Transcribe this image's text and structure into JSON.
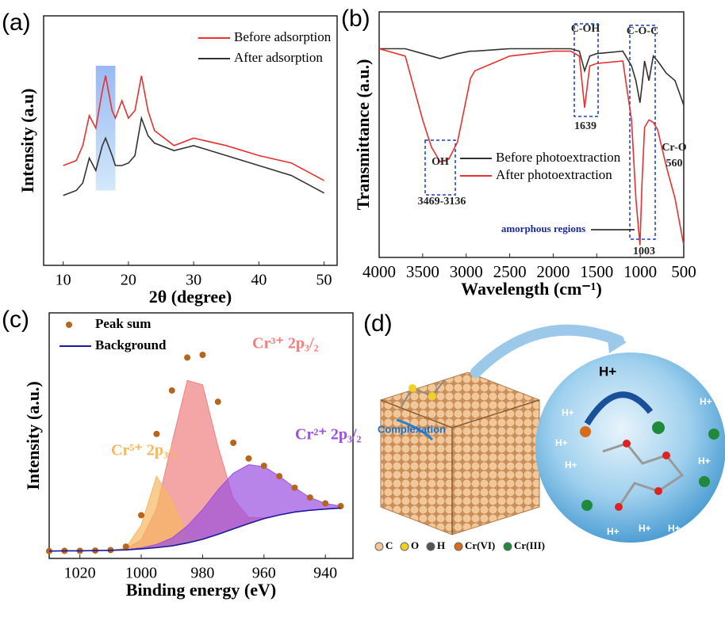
{
  "chart_data": [
    {
      "type": "line",
      "panel_label": "(a)",
      "x_label": "2θ (degree)",
      "y_label": "Intensity (a.u)",
      "xlim": [
        7,
        52
      ],
      "ylim": [
        0,
        100
      ],
      "xticks": [
        10,
        20,
        30,
        40,
        50
      ],
      "legend": "upper right",
      "x": [
        10,
        12,
        13,
        14,
        15,
        16,
        16.5,
        17.5,
        18,
        19,
        20,
        21,
        22,
        23,
        24,
        27,
        30,
        35,
        40,
        45,
        50
      ],
      "series": [
        {
          "name": "Before adsorption",
          "color": "#e83030",
          "values": [
            40,
            42,
            48,
            60,
            55,
            70,
            76,
            62,
            59,
            66,
            59,
            62,
            76,
            62,
            54,
            48,
            51,
            48,
            44,
            41,
            34
          ]
        },
        {
          "name": "After adsorption",
          "color": "#333333",
          "values": [
            28,
            30,
            33,
            43,
            38,
            48,
            51,
            44,
            40,
            40,
            41,
            44,
            59,
            52,
            49,
            46,
            48,
            44,
            40,
            36,
            29
          ]
        }
      ]
    },
    {
      "type": "line",
      "panel_label": "(b)",
      "x_label": "Wavelength (cm⁻¹)",
      "y_label": "Transmittance (a.u.)",
      "xlim": [
        4000,
        500
      ],
      "ylim": [
        0,
        100
      ],
      "xticks": [
        4000,
        3500,
        3000,
        2500,
        2000,
        1500,
        1000,
        500
      ],
      "legend": "center",
      "x": [
        4000,
        3700,
        3500,
        3400,
        3300,
        3200,
        3100,
        2950,
        2900,
        2500,
        2000,
        1800,
        1700,
        1639,
        1580,
        1500,
        1200,
        1100,
        1050,
        1003,
        980,
        950,
        900,
        850,
        800,
        700,
        600,
        500
      ],
      "series": [
        {
          "name": "Before photoextraction",
          "color": "#333333",
          "values": [
            85,
            85,
            83,
            82,
            81,
            82,
            83,
            84,
            84,
            85,
            85,
            85,
            84,
            76,
            82,
            83,
            84,
            78,
            72,
            63,
            70,
            80,
            72,
            82,
            80,
            75,
            72,
            62
          ]
        },
        {
          "name": "After photoextraction",
          "color": "#e83030",
          "values": [
            85,
            82,
            56,
            45,
            39,
            40,
            47,
            73,
            76,
            82,
            84,
            84,
            82,
            61,
            78,
            79,
            80,
            56,
            24,
            5,
            30,
            53,
            56,
            55,
            52,
            37,
            24,
            5
          ]
        }
      ],
      "annotations": [
        "C-OH",
        "C-O-C",
        "1639",
        "OH",
        "3469-3136",
        "Cr-O",
        "560",
        "amorphous regions",
        "1003"
      ]
    },
    {
      "type": "line",
      "panel_label": "(c)",
      "x_label": "Binding energy (eV)",
      "y_label": "Intensity (a.u.)",
      "xlim": [
        1030,
        931
      ],
      "ylim": [
        0,
        100
      ],
      "xticks": [
        1020,
        1000,
        980,
        960,
        940
      ],
      "legend": "upper left",
      "x": [
        1030,
        1025,
        1020,
        1015,
        1010,
        1005,
        1000,
        995,
        990,
        985,
        980,
        975,
        970,
        965,
        960,
        955,
        950,
        945,
        940,
        935
      ],
      "series": [
        {
          "name": "Peak sum",
          "color": "#b5651d",
          "marker": "dots",
          "values": [
            3.0,
            3.1,
            3.1,
            3.2,
            3.4,
            4.8,
            17.6,
            50.7,
            68.4,
            81.8,
            82.9,
            63.8,
            47.1,
            40.7,
            37.7,
            33.5,
            28.8,
            24.8,
            22.4,
            21.3
          ]
        },
        {
          "name": "Background",
          "color": "#1a1aa0",
          "values": [
            3.0,
            3.1,
            3.1,
            3.2,
            3.3,
            3.5,
            3.9,
            4.4,
            5.1,
            6.3,
            7.8,
            9.8,
            12,
            14.2,
            16.2,
            17.7,
            18.9,
            19.6,
            20.1,
            20.5
          ]
        }
      ],
      "components": [
        {
          "label": "Cr³⁺ 2p₃/₂",
          "color": "#f08080",
          "values": [
            0,
            0,
            0,
            0,
            0.04,
            0.5,
            3.6,
            15.9,
            41.9,
            66.2,
            62.9,
            35.9,
            12.4,
            2.5,
            0.3,
            0,
            0,
            0,
            0,
            0
          ]
        },
        {
          "label": "Cr⁵⁺ 2p₃/₂",
          "color": "#f5b860",
          "values": [
            0,
            0,
            0,
            0,
            0,
            0.7,
            9.7,
            29.1,
            18.2,
            2.4,
            0.1,
            0,
            0,
            0,
            0,
            0,
            0,
            0,
            0,
            0
          ]
        },
        {
          "label": "Cr²⁺ 2p₃/₂",
          "color": "#9a50e0",
          "values": [
            0,
            0,
            0,
            0,
            0.03,
            0.1,
            0.4,
            1.3,
            3.2,
            6.9,
            12.1,
            18.1,
            22.7,
            24.0,
            21.2,
            15.8,
            9.9,
            5.2,
            2.3,
            0.8
          ]
        }
      ]
    }
  ],
  "diagram": {
    "panel_label": "(d)",
    "process": "Complexation",
    "top_ion": "H+",
    "ions": [
      "H+",
      "H+",
      "H+",
      "H+",
      "H+",
      "H+",
      "H+",
      "H+"
    ],
    "legend": [
      "C",
      "O",
      "H",
      "Cr(VI)",
      "Cr(III)"
    ]
  }
}
